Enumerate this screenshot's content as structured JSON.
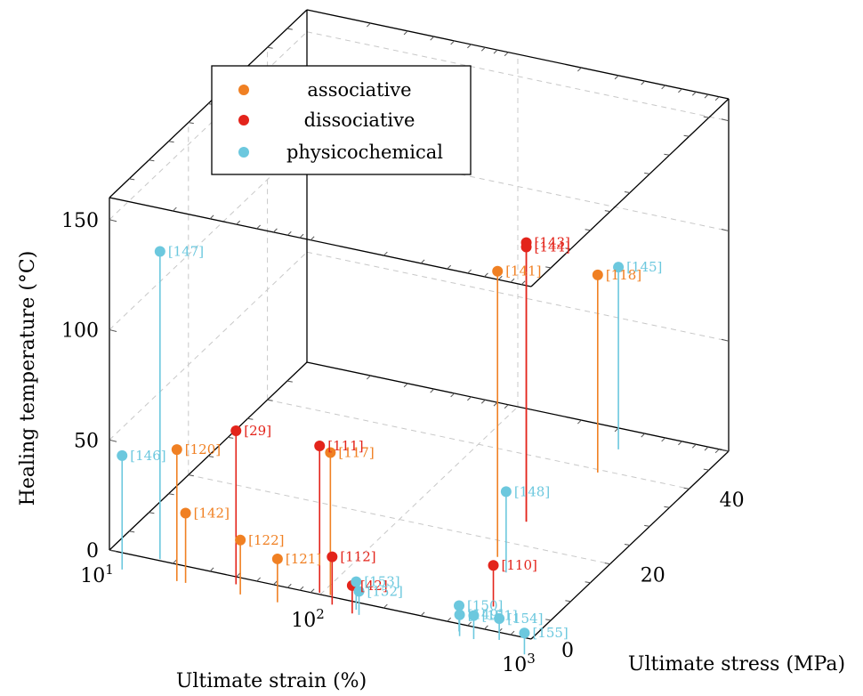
{
  "chart_data": {
    "type": "scatter3d",
    "title": "",
    "xlabel": "Ultimate strain (%)",
    "ylabel": "Ultimate stress (MPa)",
    "zlabel": "Healing temperature (°C)",
    "x_scale": "log",
    "xlim": [
      10,
      1000
    ],
    "ylim": [
      0,
      50
    ],
    "zlim": [
      0,
      160
    ],
    "x_ticks": [
      {
        "value": 10,
        "base": "10",
        "exp": "1"
      },
      {
        "value": 100,
        "base": "10",
        "exp": "2"
      },
      {
        "value": 1000,
        "base": "10",
        "exp": "3"
      }
    ],
    "y_ticks": [
      0,
      20,
      40
    ],
    "z_ticks": [
      0,
      50,
      100,
      150
    ],
    "legend": {
      "position": "top-left",
      "entries": [
        {
          "name": "associative",
          "color": "#f08023"
        },
        {
          "name": "dissociative",
          "color": "#e3241b"
        },
        {
          "name": "physicochemical",
          "color": "#6cc8de"
        }
      ]
    },
    "grid": true,
    "series": [
      {
        "name": "associative",
        "color": "#f08023",
        "points": [
          {
            "label": "[120]",
            "x": 20,
            "y": 1,
            "z": 50
          },
          {
            "label": "[142]",
            "x": 22,
            "y": 1,
            "z": 22
          },
          {
            "label": "[122]",
            "x": 40,
            "y": 1,
            "z": 15
          },
          {
            "label": "[121]",
            "x": 60,
            "y": 1,
            "z": 10
          },
          {
            "label": "[117]",
            "x": 90,
            "y": 5,
            "z": 55
          },
          {
            "label": "[141]",
            "x": 280,
            "y": 21,
            "z": 120
          },
          {
            "label": "[118]",
            "x": 310,
            "y": 44,
            "z": 80
          }
        ]
      },
      {
        "name": "dissociative",
        "color": "#e3241b",
        "points": [
          {
            "label": "[29]",
            "x": 35,
            "y": 3,
            "z": 60
          },
          {
            "label": "[111]",
            "x": 80,
            "y": 5,
            "z": 57
          },
          {
            "label": "[112]",
            "x": 100,
            "y": 3,
            "z": 12
          },
          {
            "label": "[42]",
            "x": 130,
            "y": 2,
            "z": 3
          },
          {
            "label": "[110]",
            "x": 430,
            "y": 10,
            "z": 9
          },
          {
            "label": "[143]",
            "x": 260,
            "y": 30,
            "z": 117
          },
          {
            "label": "[144]",
            "x": 260,
            "y": 30,
            "z": 115
          }
        ]
      },
      {
        "name": "physicochemical",
        "color": "#6cc8de",
        "points": [
          {
            "label": "[146]",
            "x": 11,
            "y": 1,
            "z": 42
          },
          {
            "label": "[147]",
            "x": 14,
            "y": 5,
            "z": 130
          },
          {
            "label": "[148]",
            "x": 350,
            "y": 18,
            "z": 27
          },
          {
            "label": "[153]",
            "x": 130,
            "y": 3,
            "z": 3
          },
          {
            "label": "[152]",
            "x": 140,
            "y": 2,
            "z": 1
          },
          {
            "label": "[150]",
            "x": 400,
            "y": 3,
            "z": 2
          },
          {
            "label": "[149]",
            "x": 420,
            "y": 2,
            "z": 0
          },
          {
            "label": "[151]",
            "x": 490,
            "y": 2,
            "z": 1
          },
          {
            "label": "[154]",
            "x": 620,
            "y": 3,
            "z": 0
          },
          {
            "label": "[155]",
            "x": 890,
            "y": 1,
            "z": 0
          },
          {
            "label": "[145]",
            "x": 300,
            "y": 50,
            "z": 73
          }
        ]
      }
    ]
  }
}
